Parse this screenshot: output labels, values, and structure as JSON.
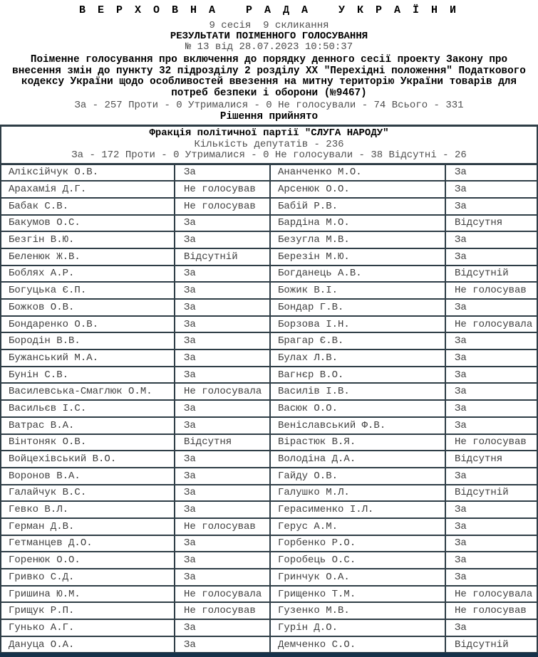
{
  "colors": {
    "background": "#ffffff",
    "text_primary": "#000000",
    "text_secondary": "#4f4f4f",
    "table_border": "#2e3d46",
    "thick_bar": "#16324a"
  },
  "header": {
    "title": "В Е Р Х О В Н А   Р А Д А   У К Р А Ї Н И",
    "session_line": "9 сесія  9 скликання",
    "results_heading": "РЕЗУЛЬТАТИ ПОІМЕННОГО ГОЛОСУВАННЯ",
    "vote_id_line": "№ 13 від 28.07.2023 10:50:37",
    "description": "Поіменне голосування про включення до порядку денного сесії проекту Закону про внесення змін до пункту 32 підрозділу 2 розділу XX \"Перехідні положення\" Податкового кодексу України щодо особливостей ввезення на митну територію України товарів для потреб безпеки і оборони (№9467)",
    "overall_totals": "За - 257 Проти - 0 Утрималися - 0 Не голосували - 74 Всього - 331",
    "decision": "Рішення прийнято"
  },
  "faction": {
    "name": "Фракція політичної партії \"СЛУГА НАРОДУ\"",
    "deputies_count": "Кількість депутатів - 236",
    "totals": "За - 172 Проти - 0 Утрималися - 0 Не голосували - 38 Відсутні - 26"
  },
  "votes_table": {
    "rows": [
      {
        "name_left": "Аліксійчук О.В.",
        "vote_left": "За",
        "name_right": "Ананченко М.О.",
        "vote_right": "За"
      },
      {
        "name_left": "Арахамія Д.Г.",
        "vote_left": "Не голосував",
        "name_right": "Арсенюк О.О.",
        "vote_right": "За"
      },
      {
        "name_left": "Бабак С.В.",
        "vote_left": "Не голосував",
        "name_right": "Бабій Р.В.",
        "vote_right": "За"
      },
      {
        "name_left": "Бакумов О.С.",
        "vote_left": "За",
        "name_right": "Бардіна М.О.",
        "vote_right": "Відсутня"
      },
      {
        "name_left": "Безгін В.Ю.",
        "vote_left": "За",
        "name_right": "Безугла М.В.",
        "vote_right": "За"
      },
      {
        "name_left": "Беленюк Ж.В.",
        "vote_left": "Відсутній",
        "name_right": "Березін М.Ю.",
        "vote_right": "За"
      },
      {
        "name_left": "Боблях А.Р.",
        "vote_left": "За",
        "name_right": "Богданець А.В.",
        "vote_right": "Відсутній"
      },
      {
        "name_left": "Богуцька Є.П.",
        "vote_left": "За",
        "name_right": "Божик В.І.",
        "vote_right": "Не голосував"
      },
      {
        "name_left": "Божков О.В.",
        "vote_left": "За",
        "name_right": "Бондар Г.В.",
        "vote_right": "За"
      },
      {
        "name_left": "Бондаренко О.В.",
        "vote_left": "За",
        "name_right": "Борзова І.Н.",
        "vote_right": "Не голосувала"
      },
      {
        "name_left": "Бородін В.В.",
        "vote_left": "За",
        "name_right": "Брагар Є.В.",
        "vote_right": "За"
      },
      {
        "name_left": "Бужанський М.А.",
        "vote_left": "За",
        "name_right": "Булах Л.В.",
        "vote_right": "За"
      },
      {
        "name_left": "Бунін С.В.",
        "vote_left": "За",
        "name_right": "Вагнєр В.О.",
        "vote_right": "За"
      },
      {
        "name_left": "Василевська-Смаглюк О.М.",
        "vote_left": "Не голосувала",
        "name_right": "Василів І.В.",
        "vote_right": "За"
      },
      {
        "name_left": "Васильєв І.С.",
        "vote_left": "За",
        "name_right": "Васюк О.О.",
        "vote_right": "За"
      },
      {
        "name_left": "Ватрас В.А.",
        "vote_left": "За",
        "name_right": "Веніславський Ф.В.",
        "vote_right": "За"
      },
      {
        "name_left": "Вінтоняк О.В.",
        "vote_left": "Відсутня",
        "name_right": "Вірастюк В.Я.",
        "vote_right": "Не голосував"
      },
      {
        "name_left": "Войцехівський В.О.",
        "vote_left": "За",
        "name_right": "Володіна Д.А.",
        "vote_right": "Відсутня"
      },
      {
        "name_left": "Воронов В.А.",
        "vote_left": "За",
        "name_right": "Гайду О.В.",
        "vote_right": "За"
      },
      {
        "name_left": "Галайчук В.С.",
        "vote_left": "За",
        "name_right": "Галушко М.Л.",
        "vote_right": "Відсутній"
      },
      {
        "name_left": "Гевко В.Л.",
        "vote_left": "За",
        "name_right": "Герасименко І.Л.",
        "vote_right": "За"
      },
      {
        "name_left": "Герман Д.В.",
        "vote_left": "Не голосував",
        "name_right": "Герус А.М.",
        "vote_right": "За"
      },
      {
        "name_left": "Гетманцев Д.О.",
        "vote_left": "За",
        "name_right": "Горбенко Р.О.",
        "vote_right": "За"
      },
      {
        "name_left": "Горенюк О.О.",
        "vote_left": "За",
        "name_right": "Горобець О.С.",
        "vote_right": "За"
      },
      {
        "name_left": "Гривко С.Д.",
        "vote_left": "За",
        "name_right": "Гринчук О.А.",
        "vote_right": "За"
      },
      {
        "name_left": "Гришина Ю.М.",
        "vote_left": "Не голосувала",
        "name_right": "Грищенко Т.М.",
        "vote_right": "Не голосувала"
      },
      {
        "name_left": "Грищук Р.П.",
        "vote_left": "Не голосував",
        "name_right": "Гузенко М.В.",
        "vote_right": "Не голосував"
      },
      {
        "name_left": "Гунько А.Г.",
        "vote_left": "За",
        "name_right": "Гурін Д.О.",
        "vote_right": "За"
      },
      {
        "name_left": "Дануца О.А.",
        "vote_left": "За",
        "name_right": "Демченко С.О.",
        "vote_right": "Відсутній"
      }
    ]
  }
}
